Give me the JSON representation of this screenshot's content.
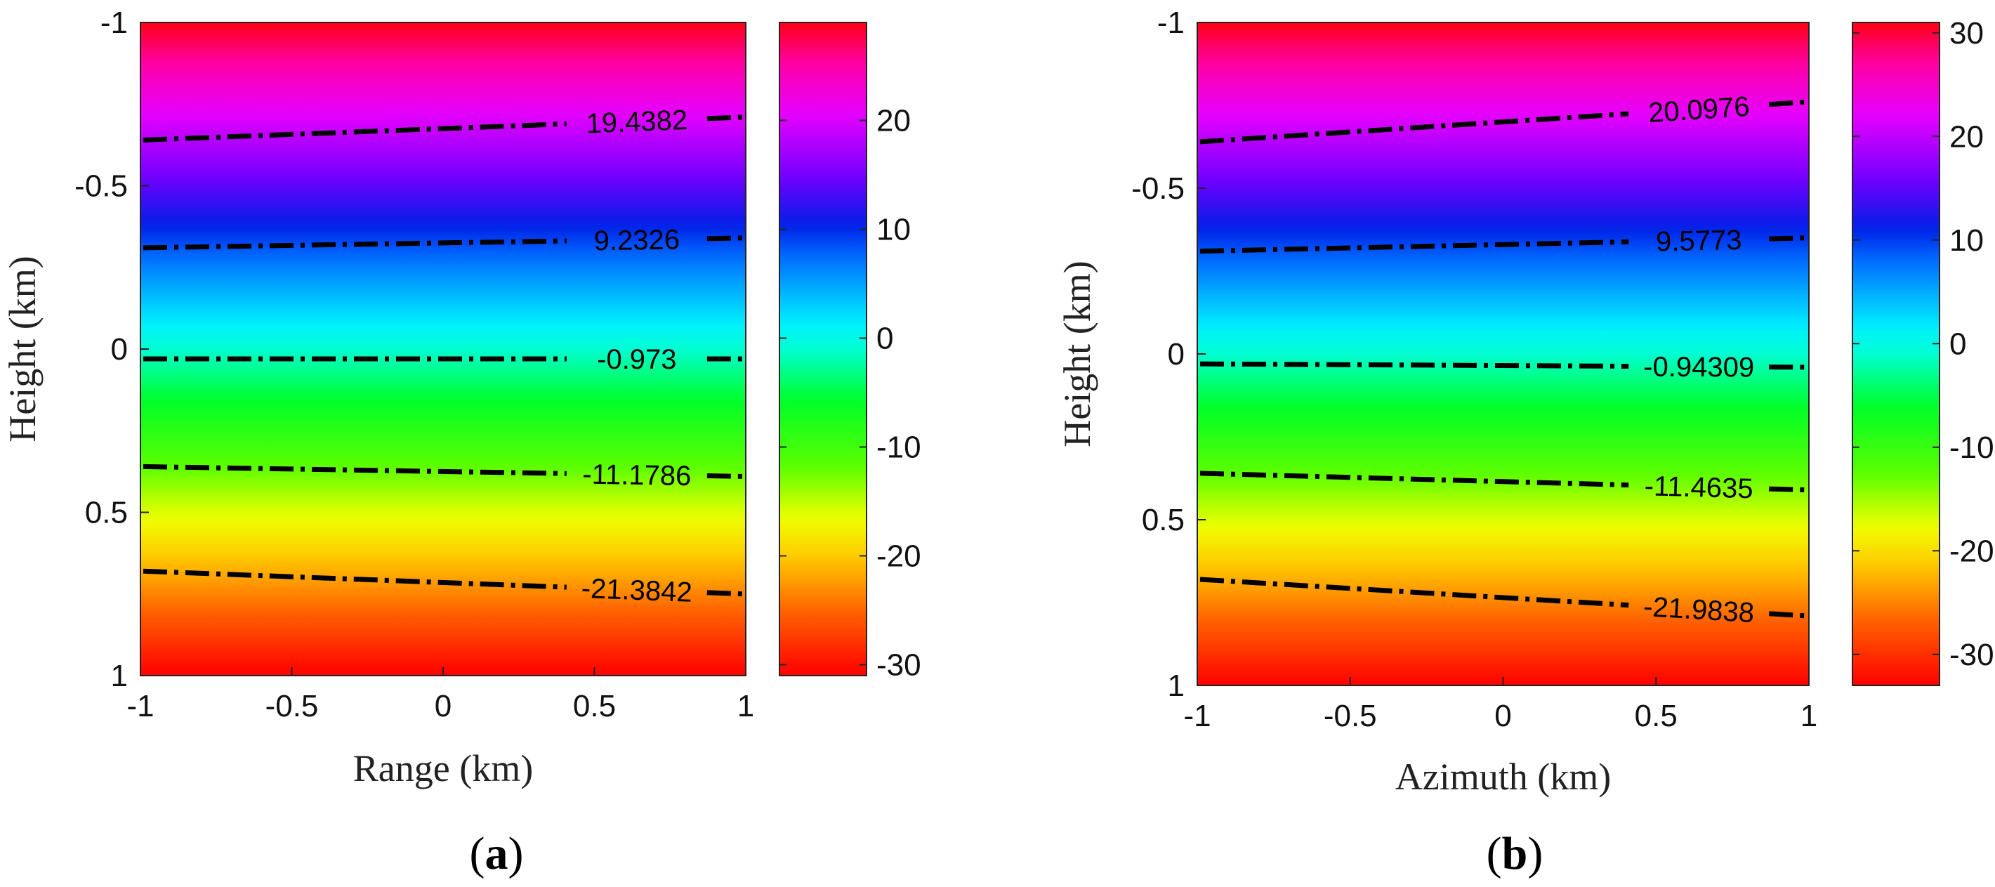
{
  "figure": {
    "panels": [
      {
        "panel_label_open": "(",
        "panel_label_letter": "a",
        "panel_label_close": ")"
      },
      {
        "panel_label_open": "(",
        "panel_label_letter": "b",
        "panel_label_close": ")"
      }
    ]
  },
  "chart_data": [
    {
      "type": "heatmap",
      "title": "",
      "xlabel": "Range (km)",
      "ylabel": "Height (km)",
      "xlim": [
        -1,
        1
      ],
      "ylim": [
        -1,
        1
      ],
      "y_reversed": true,
      "x_ticks": [
        "-1",
        "-0.5",
        "0",
        "0.5",
        "1"
      ],
      "x_tick_values": [
        -1,
        -0.5,
        0,
        0.5,
        1
      ],
      "y_ticks": [
        "-1",
        "-0.5",
        "0",
        "0.5",
        "1"
      ],
      "y_tick_values": [
        -1,
        -0.5,
        0,
        0.5,
        1
      ],
      "colorbar": {
        "range": [
          -31,
          29
        ],
        "ticks": [
          "20",
          "10",
          "0",
          "-10",
          "-20",
          "-30"
        ],
        "tick_values": [
          20,
          10,
          0,
          -10,
          -20,
          -30
        ]
      },
      "value_model": {
        "top_value": 29,
        "bottom_value": -31
      },
      "contours": [
        {
          "label": "19.4382",
          "value": 19.4382,
          "y_left": -0.64,
          "y_right": -0.71
        },
        {
          "label": "9.2326",
          "value": 9.2326,
          "y_left": -0.31,
          "y_right": -0.34
        },
        {
          "label": "-0.973",
          "value": -0.973,
          "y_left": 0.03,
          "y_right": 0.03
        },
        {
          "label": "-11.1786",
          "value": -11.1786,
          "y_left": 0.36,
          "y_right": 0.39
        },
        {
          "label": "-21.3842",
          "value": -21.3842,
          "y_left": 0.68,
          "y_right": 0.75
        }
      ]
    },
    {
      "type": "heatmap",
      "title": "",
      "xlabel": "Azimuth (km)",
      "ylabel": "Height (km)",
      "xlim": [
        -1,
        1
      ],
      "ylim": [
        -1,
        1
      ],
      "y_reversed": true,
      "x_ticks": [
        "-1",
        "-0.5",
        "0",
        "0.5",
        "1"
      ],
      "x_tick_values": [
        -1,
        -0.5,
        0,
        0.5,
        1
      ],
      "y_ticks": [
        "-1",
        "-0.5",
        "0",
        "0.5",
        "1"
      ],
      "y_tick_values": [
        -1,
        -0.5,
        0,
        0.5,
        1
      ],
      "colorbar": {
        "range": [
          -33,
          31
        ],
        "ticks": [
          "30",
          "20",
          "10",
          "0",
          "-10",
          "-20",
          "-30"
        ],
        "tick_values": [
          30,
          20,
          10,
          0,
          -10,
          -20,
          -30
        ]
      },
      "value_model": {
        "top_value": 31,
        "bottom_value": -33
      },
      "contours": [
        {
          "label": "20.0976",
          "value": 20.0976,
          "y_left": -0.64,
          "y_right": -0.76
        },
        {
          "label": "9.5773",
          "value": 9.5773,
          "y_left": -0.31,
          "y_right": -0.35
        },
        {
          "label": "-0.94309",
          "value": -0.94309,
          "y_left": 0.03,
          "y_right": 0.04
        },
        {
          "label": "-11.4635",
          "value": -11.4635,
          "y_left": 0.36,
          "y_right": 0.41
        },
        {
          "label": "-21.9838",
          "value": -21.9838,
          "y_left": 0.68,
          "y_right": 0.79
        }
      ]
    }
  ]
}
